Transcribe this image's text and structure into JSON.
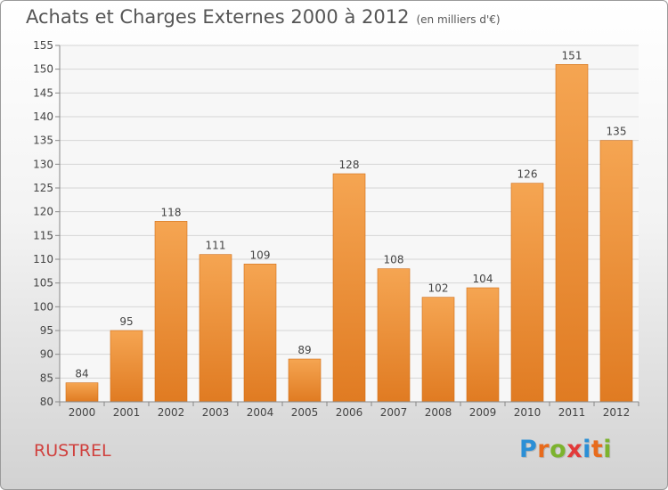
{
  "header": {
    "title": "Achats et Charges Externes 2000 à 2012",
    "unit": "(en milliers d'€)"
  },
  "commune": "RUSTREL",
  "logo": {
    "letters": [
      "P",
      "r",
      "o",
      "x",
      "i",
      "t",
      "i"
    ],
    "colors": [
      "#2b8fd6",
      "#e86b1c",
      "#7cb32e",
      "#e23a3a",
      "#2b8fd6",
      "#e86b1c",
      "#7cb32e"
    ]
  },
  "chart_data": {
    "type": "bar",
    "categories": [
      "2000",
      "2001",
      "2002",
      "2003",
      "2004",
      "2005",
      "2006",
      "2007",
      "2008",
      "2009",
      "2010",
      "2011",
      "2012"
    ],
    "values": [
      84,
      95,
      118,
      111,
      109,
      89,
      128,
      108,
      102,
      104,
      126,
      151,
      135
    ],
    "data_labels": [
      "84",
      "95",
      "118",
      "111",
      "109",
      "89",
      "128",
      "108",
      "102",
      "104",
      "126",
      "151",
      "135"
    ],
    "title": "Achats et Charges Externes 2000 à 2012",
    "xlabel": "",
    "ylabel": "",
    "ylim": [
      80,
      155
    ],
    "yticks": [
      80,
      85,
      90,
      95,
      100,
      105,
      110,
      115,
      120,
      125,
      130,
      135,
      140,
      145,
      150,
      155
    ],
    "grid": true,
    "bar_color_top": "#f5a552",
    "bar_color_bottom": "#e07b22"
  }
}
